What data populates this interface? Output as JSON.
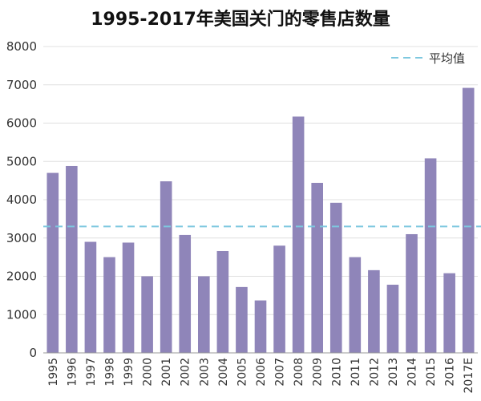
{
  "chart_data": {
    "type": "bar",
    "title": "1995-2017年美国关门的零售店数量",
    "xlabel": "",
    "ylabel": "",
    "ylim": [
      0,
      8000
    ],
    "yticks": [
      0,
      1000,
      2000,
      3000,
      4000,
      5000,
      6000,
      7000,
      8000
    ],
    "grid": true,
    "legend_position": "top-right",
    "categories": [
      "1995",
      "1996",
      "1997",
      "1998",
      "1999",
      "2000",
      "2001",
      "2002",
      "2003",
      "2004",
      "2005",
      "2006",
      "2007",
      "2008",
      "2009",
      "2010",
      "2011",
      "2012",
      "2013",
      "2014",
      "2015",
      "2016",
      "2017E"
    ],
    "values": [
      4700,
      4880,
      2900,
      2500,
      2880,
      2000,
      4480,
      3080,
      2000,
      2660,
      1720,
      1370,
      2800,
      6170,
      4440,
      3920,
      2500,
      2160,
      1780,
      3100,
      5080,
      2080,
      6920
    ],
    "average": {
      "name": "平均值",
      "value": 3300
    },
    "colors": {
      "bar": "#8f85b9",
      "average_line": "#7ec8df",
      "grid": "#e0e0e0",
      "axis": "#999999"
    }
  }
}
